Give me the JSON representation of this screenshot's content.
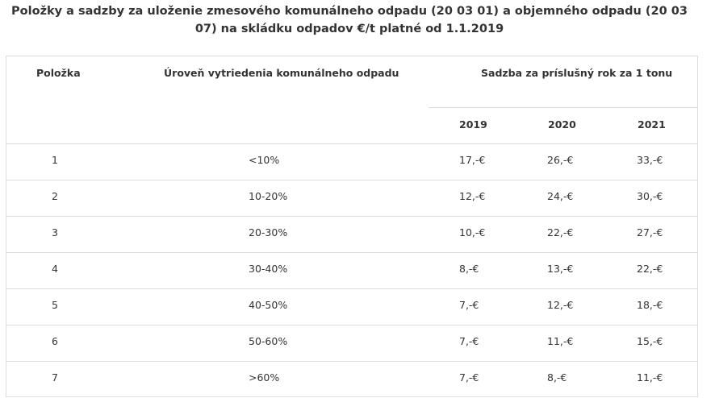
{
  "title": "Položky a sadzby za uloženie zmesového komunálneho odpadu (20 03 01) a objemného odpadu (20 03 07) na skládku odpadov €/t platné od 1.1.2019",
  "headers": {
    "item": "Položka",
    "level": "Úroveň vytriedenia komunálneho odpadu",
    "rate": "Sadzba za príslušný rok za 1 tonu",
    "years": [
      "2019",
      "2020",
      "2021"
    ]
  },
  "rows": [
    {
      "item": "1",
      "level": "<10%",
      "y2019": "17,-€",
      "y2020": "26,-€",
      "y2021": "33,-€"
    },
    {
      "item": "2",
      "level": "10-20%",
      "y2019": "12,-€",
      "y2020": "24,-€",
      "y2021": "30,-€"
    },
    {
      "item": "3",
      "level": "20-30%",
      "y2019": "10,-€",
      "y2020": "22,-€",
      "y2021": "27,-€"
    },
    {
      "item": "4",
      "level": "30-40%",
      "y2019": "8,-€",
      "y2020": "13,-€",
      "y2021": "22,-€"
    },
    {
      "item": "5",
      "level": "40-50%",
      "y2019": "7,-€",
      "y2020": "12,-€",
      "y2021": "18,-€"
    },
    {
      "item": "6",
      "level": "50-60%",
      "y2019": "7,-€",
      "y2020": "11,-€",
      "y2021": "15,-€"
    },
    {
      "item": "7",
      "level": ">60%",
      "y2019": "7,-€",
      "y2020": "8,-€",
      "y2021": "11,-€"
    }
  ]
}
